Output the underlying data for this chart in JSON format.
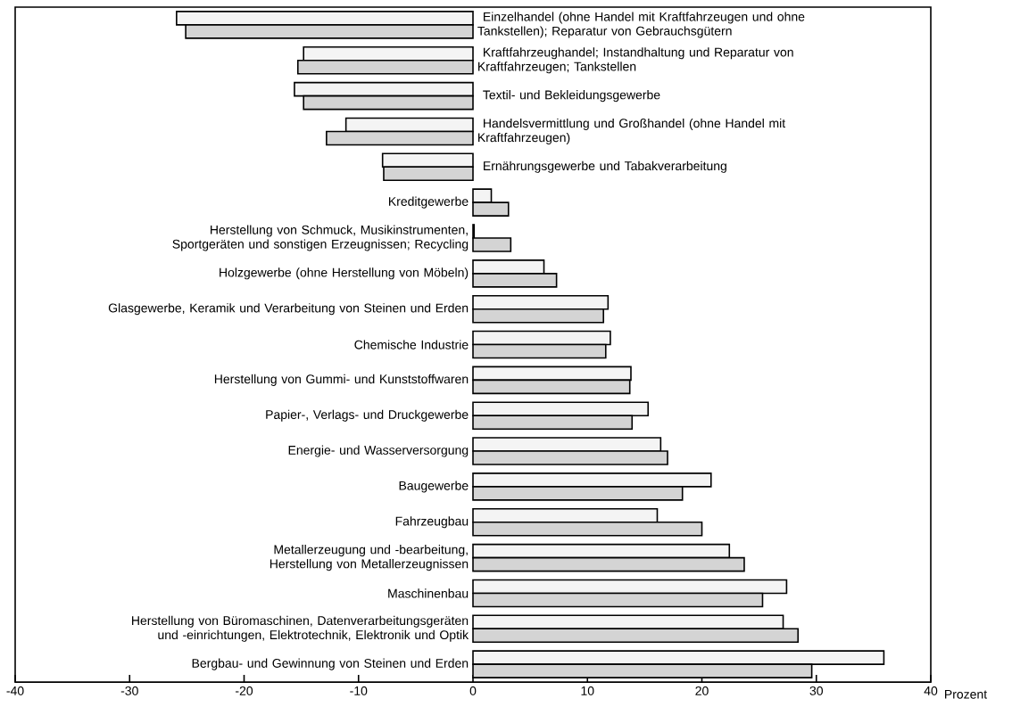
{
  "chart_data": {
    "type": "bar",
    "orientation": "horizontal",
    "xlabel": "Prozent",
    "categories": [
      "Einzelhandel (ohne Handel mit Kraftfahrzeugen und ohne Tankstellen); Reparatur von Gebrauchsgütern",
      "Kraftfahrzeughandel; Instandhaltung und Reparatur von Kraftfahrzeugen; Tankstellen",
      "Textil- und Bekleidungsgewerbe",
      "Handelsvermittlung und Großhandel (ohne Handel mit Kraftfahrzeugen)",
      "Ernährungsgewerbe und Tabakverarbeitung",
      "Kreditgewerbe",
      "Herstellung von Schmuck, Musikinstrumenten, Sportgeräten und sonstigen Erzeugnissen; Recycling",
      "Holzgewerbe (ohne Herstellung von Möbeln)",
      "Glasgewerbe, Keramik und Verarbeitung von Steinen und Erden",
      "Chemische Industrie",
      "Herstellung von Gummi- und Kunststoffwaren",
      "Papier-, Verlags- und Druckgewerbe",
      "Energie- und Wasserversorgung",
      "Baugewerbe",
      "Fahrzeugbau",
      "Metallerzeugung und -bearbeitung, Herstellung von Metallerzeugnissen",
      "Maschinenbau",
      "Herstellung von Büromaschinen, Datenverarbeitungsgeräten und -einrichtungen, Elektrotechnik, Elektronik und Optik",
      "Bergbau- und Gewinnung von Steinen und Erden"
    ],
    "series": [
      {
        "color": "#f4f4f4",
        "values": [
          -25.9,
          -14.8,
          -15.6,
          -11.1,
          -7.9,
          1.6,
          0.1,
          6.2,
          11.8,
          12.0,
          13.8,
          15.3,
          16.4,
          20.8,
          16.1,
          22.4,
          27.4,
          27.1,
          35.9
        ]
      },
      {
        "color": "#d4d4d4",
        "values": [
          -25.1,
          -15.3,
          -14.8,
          -12.8,
          -7.8,
          3.1,
          3.3,
          7.3,
          11.4,
          11.6,
          13.7,
          13.9,
          17.0,
          18.3,
          20.0,
          23.7,
          25.3,
          28.4,
          29.6
        ]
      }
    ],
    "xlim": [
      -40,
      40
    ],
    "xticks": [
      -40,
      -30,
      -20,
      -10,
      0,
      10,
      20,
      30,
      40
    ]
  }
}
